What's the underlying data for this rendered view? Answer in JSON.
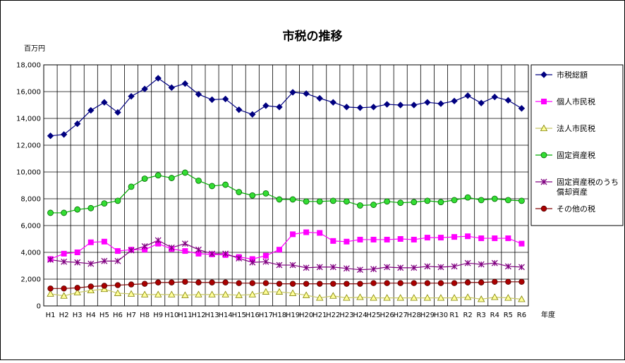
{
  "chart_data": {
    "type": "line",
    "title": "市税の推移",
    "ylabel": "百万円",
    "xlabel": "年度",
    "ylim": [
      0,
      18000
    ],
    "ytick_step": 2000,
    "yticks": [
      "0",
      "2,000",
      "4,000",
      "6,000",
      "8,000",
      "10,000",
      "12,000",
      "14,000",
      "16,000",
      "18,000"
    ],
    "grid": true,
    "legend_position": "right",
    "categories": [
      "H1",
      "H2",
      "H3",
      "H4",
      "H5",
      "H6",
      "H7",
      "H8",
      "H9",
      "H10",
      "H11",
      "H12",
      "H13",
      "H14",
      "H15",
      "H16",
      "H17",
      "H18",
      "H19",
      "H20",
      "H21",
      "H22",
      "H23",
      "H24",
      "H25",
      "H26",
      "H27",
      "H28",
      "H29",
      "H30",
      "R1",
      "R2",
      "R3",
      "R4",
      "R5",
      "R6"
    ],
    "series": [
      {
        "name": "市税総額",
        "color": "#000080",
        "marker": "diamond",
        "values": [
          12700,
          12800,
          13600,
          14600,
          15200,
          14450,
          15650,
          16200,
          17000,
          16300,
          16600,
          15800,
          15400,
          15450,
          14650,
          14300,
          14950,
          14850,
          15950,
          15850,
          15500,
          15200,
          14850,
          14800,
          14850,
          15050,
          15000,
          15000,
          15200,
          15100,
          15300,
          15700,
          15150,
          15600,
          15350,
          14750
        ]
      },
      {
        "name": "個人市民税",
        "color": "#ff00ff",
        "marker": "square",
        "values": [
          3500,
          3900,
          4000,
          4750,
          4800,
          4100,
          4200,
          4200,
          4650,
          4250,
          4100,
          3900,
          3850,
          3800,
          3650,
          3500,
          3750,
          4200,
          5350,
          5500,
          5450,
          4850,
          4800,
          4950,
          4950,
          4950,
          5000,
          4950,
          5100,
          5100,
          5150,
          5200,
          5050,
          5050,
          5050,
          4650
        ]
      },
      {
        "name": "法人市民税",
        "color": "#c8c864",
        "marker": "triangle",
        "values": [
          900,
          750,
          1000,
          1150,
          1250,
          950,
          900,
          850,
          850,
          850,
          800,
          850,
          850,
          850,
          800,
          850,
          1050,
          1050,
          950,
          800,
          600,
          750,
          600,
          650,
          600,
          600,
          600,
          600,
          600,
          600,
          600,
          650,
          500,
          650,
          600,
          500
        ]
      },
      {
        "name": "固定資産税",
        "color": "#00aa00",
        "marker": "circle",
        "values": [
          6950,
          6950,
          7200,
          7300,
          7650,
          7850,
          8900,
          9500,
          9750,
          9550,
          9950,
          9350,
          8950,
          9050,
          8500,
          8250,
          8400,
          7950,
          7950,
          7800,
          7800,
          7850,
          7800,
          7500,
          7550,
          7800,
          7700,
          7750,
          7850,
          7750,
          7900,
          8100,
          7900,
          8000,
          7900,
          7850
        ]
      },
      {
        "name": "固定資産税のうち償却資産",
        "name_lines": [
          "固定資産税のうち",
          "償却資産"
        ],
        "color": "#800080",
        "marker": "asterisk",
        "values": [
          3450,
          3300,
          3250,
          3150,
          3350,
          3350,
          4150,
          4450,
          4900,
          4350,
          4650,
          4200,
          3900,
          3900,
          3550,
          3250,
          3300,
          3050,
          3050,
          2850,
          2900,
          2900,
          2800,
          2700,
          2750,
          2900,
          2850,
          2850,
          2950,
          2900,
          2950,
          3200,
          3100,
          3200,
          2950,
          2900
        ]
      },
      {
        "name": "その他の税",
        "color": "#800000",
        "marker": "circle-dark",
        "values": [
          1300,
          1300,
          1350,
          1450,
          1500,
          1550,
          1600,
          1650,
          1750,
          1750,
          1800,
          1750,
          1750,
          1750,
          1700,
          1700,
          1700,
          1650,
          1650,
          1650,
          1650,
          1650,
          1650,
          1650,
          1700,
          1700,
          1700,
          1700,
          1700,
          1700,
          1700,
          1750,
          1750,
          1800,
          1800,
          1800
        ]
      }
    ]
  }
}
